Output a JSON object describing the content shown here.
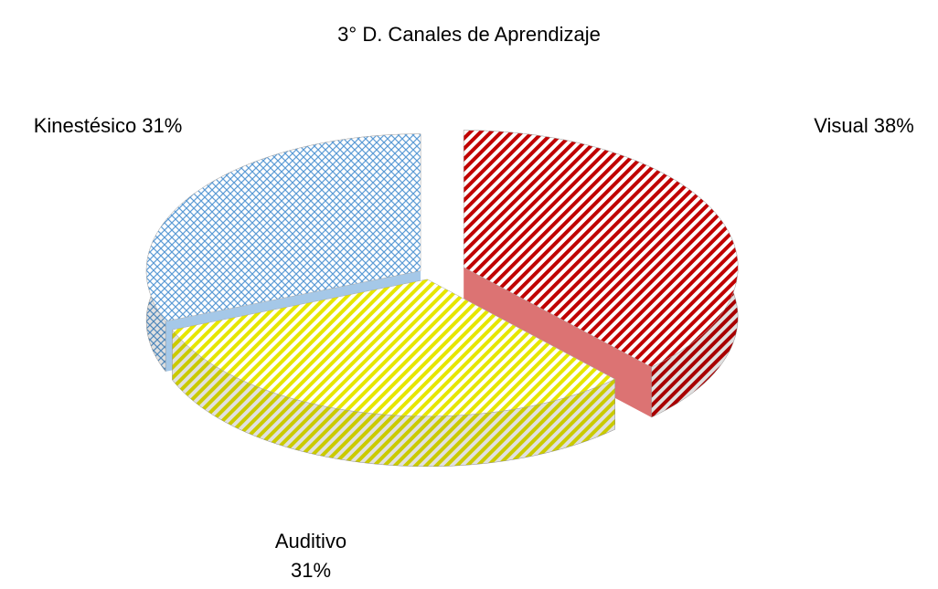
{
  "chart_data": {
    "type": "pie",
    "title": "3° D. Canales de Aprendizaje",
    "categories": [
      "Visual",
      "Auditivo",
      "Kinestésico"
    ],
    "values": [
      38,
      31,
      31
    ],
    "value_labels": [
      "38%",
      "31%",
      "31%"
    ],
    "colors": [
      "#c00000",
      "#e6e600",
      "#5b9bd5"
    ]
  }
}
